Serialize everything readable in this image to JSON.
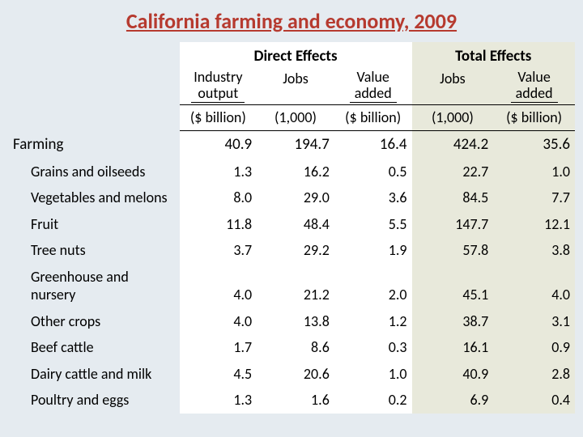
{
  "title": "California farming and economy, 2009",
  "headers": {
    "direct": "Direct Effects",
    "total": "Total Effects",
    "industry_output_l1": "Industry",
    "industry_output_l2": "output",
    "jobs": "Jobs",
    "value_added_l1": "Value",
    "value_added_l2": "added",
    "unit_billion": "($ billion)",
    "unit_thousand": "(1,000)"
  },
  "rows": [
    {
      "label": "Farming",
      "indent": false,
      "d_output": "40.9",
      "d_jobs": "194.7",
      "d_value": "16.4",
      "t_jobs": "424.2",
      "t_value": "35.6"
    },
    {
      "label": "Grains and oilseeds",
      "indent": true,
      "d_output": "1.3",
      "d_jobs": "16.2",
      "d_value": "0.5",
      "t_jobs": "22.7",
      "t_value": "1.0"
    },
    {
      "label": "Vegetables and melons",
      "indent": true,
      "d_output": "8.0",
      "d_jobs": "29.0",
      "d_value": "3.6",
      "t_jobs": "84.5",
      "t_value": "7.7"
    },
    {
      "label": "Fruit",
      "indent": true,
      "d_output": "11.8",
      "d_jobs": "48.4",
      "d_value": "5.5",
      "t_jobs": "147.7",
      "t_value": "12.1"
    },
    {
      "label": "Tree nuts",
      "indent": true,
      "d_output": "3.7",
      "d_jobs": "29.2",
      "d_value": "1.9",
      "t_jobs": "57.8",
      "t_value": "3.8"
    },
    {
      "label": "Greenhouse and nursery",
      "indent": true,
      "d_output": "4.0",
      "d_jobs": "21.2",
      "d_value": "2.0",
      "t_jobs": "45.1",
      "t_value": "4.0"
    },
    {
      "label": "Other crops",
      "indent": true,
      "d_output": "4.0",
      "d_jobs": "13.8",
      "d_value": "1.2",
      "t_jobs": "38.7",
      "t_value": "3.1"
    },
    {
      "label": "Beef cattle",
      "indent": true,
      "d_output": "1.7",
      "d_jobs": "8.6",
      "d_value": "0.3",
      "t_jobs": "16.1",
      "t_value": "0.9"
    },
    {
      "label": "Dairy cattle and milk",
      "indent": true,
      "d_output": "4.5",
      "d_jobs": "20.6",
      "d_value": "1.0",
      "t_jobs": "40.9",
      "t_value": "2.8"
    },
    {
      "label": "Poultry and eggs",
      "indent": true,
      "d_output": "1.3",
      "d_jobs": "1.6",
      "d_value": "0.2",
      "t_jobs": "6.9",
      "t_value": "0.4"
    }
  ],
  "style": {
    "page_bg": "#e5ebf0",
    "direct_bg": "#ffffff",
    "total_bg": "#e8e9db",
    "title_color": "#b63a2f",
    "font_family": "Calibri",
    "title_fontsize_pt": 20,
    "body_fontsize_pt": 13,
    "border_color": "#000000"
  }
}
